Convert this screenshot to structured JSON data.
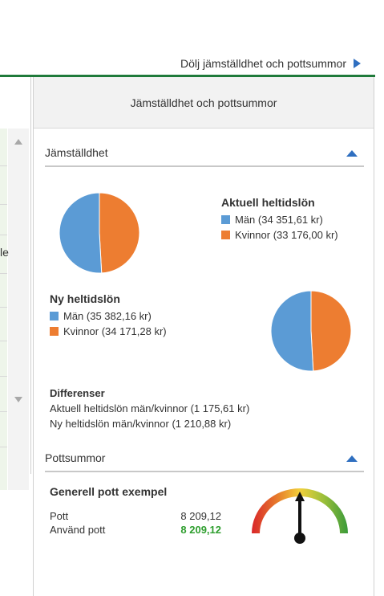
{
  "toggle": {
    "label": "Dölj jämställdhet och pottsummor"
  },
  "left_strip": {
    "cut_text": "le"
  },
  "panel": {
    "header": "Jämställdhet och pottsummor",
    "equality": {
      "title": "Jämställdhet",
      "current": {
        "title": "Aktuell heltidslön",
        "men": "Män (34 351,61 kr)",
        "women": "Kvinnor (33 176,00 kr)"
      },
      "new": {
        "title": "Ny heltidslön",
        "men": "Män (35 382,16 kr)",
        "women": "Kvinnor (34 171,28 kr)"
      },
      "diff": {
        "title": "Differenser",
        "current": "Aktuell heltidslön män/kvinnor (1 175,61 kr)",
        "new": "Ny heltidslön män/kvinnor (1 210,88 kr)"
      }
    },
    "pots": {
      "title": "Pottsummor",
      "example_title": "Generell pott exempel",
      "pott_label": "Pott",
      "pott_value": "8 209,12",
      "used_label": "Använd pott",
      "used_value": "8 209,12",
      "gauge_level": 1.0
    }
  },
  "colors": {
    "men": "#5b9bd5",
    "women": "#ed7d31",
    "accent_green": "#1f7a3a",
    "chevron": "#2f6fc0",
    "used_green": "#2e9e2e"
  },
  "chart_data": [
    {
      "type": "pie",
      "title": "Aktuell heltidslön",
      "categories": [
        "Män",
        "Kvinnor"
      ],
      "values": [
        34351.61,
        33176.0
      ]
    },
    {
      "type": "pie",
      "title": "Ny heltidslön",
      "categories": [
        "Män",
        "Kvinnor"
      ],
      "values": [
        35382.16,
        34171.28
      ]
    }
  ]
}
